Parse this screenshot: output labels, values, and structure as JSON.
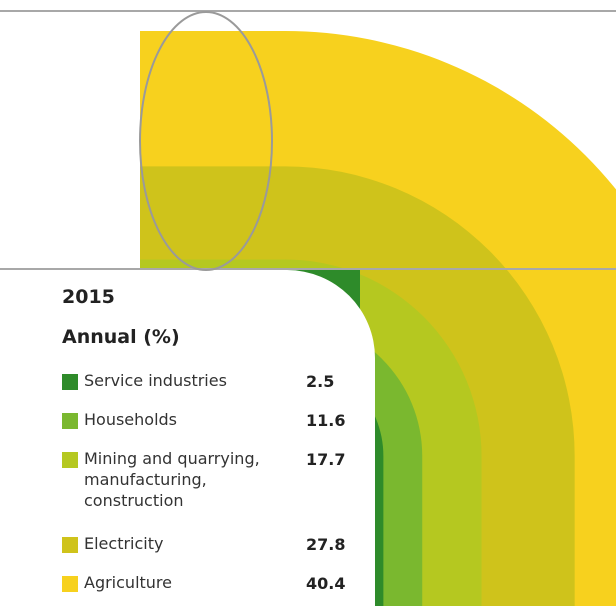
{
  "chart_data": {
    "type": "pipe",
    "title": "2015",
    "subtitle": "Annual (%)",
    "categories": [
      "Service industries",
      "Households",
      "Mining and quarrying, manufacturing, construction",
      "Electricity",
      "Agriculture"
    ],
    "values": [
      2.5,
      11.6,
      17.7,
      27.8,
      40.4
    ],
    "colors": [
      "#2e8b2a",
      "#7ab82f",
      "#b5c820",
      "#cfc31b",
      "#f7d11e"
    ]
  },
  "legend": {
    "year": "2015",
    "subtitle": "Annual (%)",
    "items": [
      {
        "label_lines": [
          "Service industries"
        ],
        "value": "2.5",
        "color": "#2e8b2a"
      },
      {
        "label_lines": [
          "Households"
        ],
        "value": "11.6",
        "color": "#7ab82f"
      },
      {
        "label_lines": [
          "Mining and quarrying,",
          "manufacturing,",
          "construction"
        ],
        "value": "17.7",
        "color": "#b5c820"
      },
      {
        "label_lines": [
          "Electricity"
        ],
        "value": "27.8",
        "color": "#cfc31b"
      },
      {
        "label_lines": [
          "Agriculture"
        ],
        "value": "40.4",
        "color": "#f7d11e"
      }
    ]
  }
}
